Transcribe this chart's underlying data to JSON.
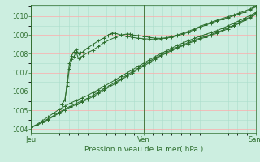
{
  "title": "Pression niveau de la mer( hPa )",
  "background_color": "#cceee0",
  "grid_color_major": "#ffaaaa",
  "grid_color_minor": "#aaddcc",
  "line_color": "#2d6e2d",
  "text_color": "#2d6e2d",
  "ylim": [
    1003.8,
    1010.6
  ],
  "yticks": [
    1004,
    1005,
    1006,
    1007,
    1008,
    1009,
    1010
  ],
  "day_labels": [
    "Jeu",
    "Ven",
    "Sam"
  ],
  "day_positions": [
    0.0,
    1.0,
    2.0
  ],
  "all_series": [
    {
      "x": [
        0.0,
        0.05,
        0.1,
        0.15,
        0.2,
        0.25,
        0.3,
        0.35,
        0.4,
        0.45,
        0.5,
        0.55,
        0.6,
        0.65,
        0.7,
        0.75,
        0.8,
        0.85,
        0.9,
        0.95,
        1.0,
        1.05,
        1.1,
        1.15,
        1.2,
        1.25,
        1.3,
        1.35,
        1.4,
        1.45,
        1.5,
        1.55,
        1.6,
        1.65,
        1.7,
        1.75,
        1.8,
        1.85,
        1.9,
        1.95,
        2.0
      ],
      "y": [
        1004.1,
        1004.25,
        1004.45,
        1004.65,
        1004.85,
        1005.05,
        1005.22,
        1005.38,
        1005.52,
        1005.65,
        1005.78,
        1005.95,
        1006.1,
        1006.28,
        1006.45,
        1006.62,
        1006.8,
        1006.98,
        1007.15,
        1007.33,
        1007.5,
        1007.68,
        1007.85,
        1008.0,
        1008.15,
        1008.3,
        1008.45,
        1008.58,
        1008.7,
        1008.82,
        1008.93,
        1009.03,
        1009.13,
        1009.23,
        1009.35,
        1009.48,
        1009.62,
        1009.76,
        1009.9,
        1010.05,
        1010.2
      ]
    },
    {
      "x": [
        0.0,
        0.05,
        0.1,
        0.15,
        0.2,
        0.25,
        0.3,
        0.35,
        0.4,
        0.45,
        0.5,
        0.55,
        0.6,
        0.65,
        0.7,
        0.75,
        0.8,
        0.85,
        0.9,
        0.95,
        1.0,
        1.05,
        1.1,
        1.15,
        1.2,
        1.25,
        1.3,
        1.35,
        1.4,
        1.45,
        1.5,
        1.55,
        1.6,
        1.65,
        1.7,
        1.75,
        1.8,
        1.85,
        1.9,
        1.95,
        2.0
      ],
      "y": [
        1004.1,
        1004.22,
        1004.38,
        1004.55,
        1004.72,
        1004.9,
        1005.07,
        1005.22,
        1005.36,
        1005.5,
        1005.63,
        1005.8,
        1005.97,
        1006.15,
        1006.32,
        1006.5,
        1006.68,
        1006.87,
        1007.05,
        1007.23,
        1007.42,
        1007.6,
        1007.78,
        1007.93,
        1008.08,
        1008.22,
        1008.35,
        1008.48,
        1008.6,
        1008.72,
        1008.83,
        1008.93,
        1009.03,
        1009.13,
        1009.25,
        1009.38,
        1009.52,
        1009.67,
        1009.82,
        1009.97,
        1010.15
      ]
    },
    {
      "x": [
        0.0,
        0.05,
        0.1,
        0.15,
        0.2,
        0.25,
        0.3,
        0.35,
        0.4,
        0.45,
        0.5,
        0.55,
        0.6,
        0.65,
        0.7,
        0.75,
        0.8,
        0.85,
        0.9,
        0.95,
        1.0,
        1.05,
        1.1,
        1.15,
        1.2,
        1.25,
        1.3,
        1.35,
        1.4,
        1.45,
        1.5,
        1.55,
        1.6,
        1.65,
        1.7,
        1.75,
        1.8,
        1.85,
        1.9,
        1.95,
        2.0
      ],
      "y": [
        1004.1,
        1004.2,
        1004.35,
        1004.5,
        1004.68,
        1004.85,
        1005.02,
        1005.17,
        1005.3,
        1005.43,
        1005.57,
        1005.73,
        1005.9,
        1006.08,
        1006.25,
        1006.43,
        1006.62,
        1006.8,
        1006.98,
        1007.17,
        1007.35,
        1007.53,
        1007.72,
        1007.88,
        1008.03,
        1008.17,
        1008.3,
        1008.43,
        1008.55,
        1008.67,
        1008.78,
        1008.88,
        1008.98,
        1009.08,
        1009.2,
        1009.33,
        1009.47,
        1009.62,
        1009.77,
        1009.92,
        1010.1
      ]
    },
    {
      "x": [
        0.27,
        0.3,
        0.32,
        0.34,
        0.36,
        0.38,
        0.4,
        0.42,
        0.44,
        0.46,
        0.5,
        0.55,
        0.6,
        0.65,
        0.7,
        0.75,
        0.8,
        0.85,
        0.88,
        0.9,
        0.95,
        1.0,
        1.05,
        1.1,
        1.15,
        1.2,
        1.25,
        1.3,
        1.35,
        1.4,
        1.45,
        1.5,
        1.55,
        1.6,
        1.65,
        1.7,
        1.75,
        1.8,
        1.85,
        1.9,
        1.95,
        2.0
      ],
      "y": [
        1005.3,
        1005.55,
        1006.3,
        1007.2,
        1007.7,
        1007.85,
        1008.1,
        1007.75,
        1007.8,
        1007.9,
        1008.05,
        1008.2,
        1008.4,
        1008.6,
        1008.75,
        1008.88,
        1009.0,
        1009.05,
        1009.05,
        1009.0,
        1008.97,
        1008.93,
        1008.88,
        1008.83,
        1008.82,
        1008.83,
        1008.88,
        1008.95,
        1009.05,
        1009.15,
        1009.28,
        1009.4,
        1009.52,
        1009.63,
        1009.73,
        1009.83,
        1009.92,
        1010.02,
        1010.12,
        1010.22,
        1010.35,
        1010.5
      ]
    },
    {
      "x": [
        0.27,
        0.3,
        0.32,
        0.34,
        0.36,
        0.38,
        0.4,
        0.42,
        0.44,
        0.46,
        0.5,
        0.55,
        0.6,
        0.65,
        0.68,
        0.7,
        0.72,
        0.75,
        0.8,
        0.85,
        0.9,
        0.95,
        1.0,
        1.05,
        1.1,
        1.15,
        1.2,
        1.25,
        1.3,
        1.35,
        1.4,
        1.45,
        1.5,
        1.55,
        1.6,
        1.65,
        1.7,
        1.75,
        1.8,
        1.85,
        1.9,
        1.95,
        2.0
      ],
      "y": [
        1005.3,
        1005.55,
        1006.5,
        1007.5,
        1007.9,
        1008.1,
        1008.25,
        1008.0,
        1008.05,
        1008.1,
        1008.3,
        1008.5,
        1008.7,
        1008.85,
        1008.98,
        1009.05,
        1009.1,
        1009.08,
        1009.0,
        1008.93,
        1008.87,
        1008.83,
        1008.8,
        1008.78,
        1008.78,
        1008.8,
        1008.85,
        1008.92,
        1009.0,
        1009.1,
        1009.2,
        1009.32,
        1009.45,
        1009.57,
        1009.68,
        1009.78,
        1009.88,
        1009.97,
        1010.07,
        1010.17,
        1010.28,
        1010.4,
        1010.55
      ]
    }
  ]
}
